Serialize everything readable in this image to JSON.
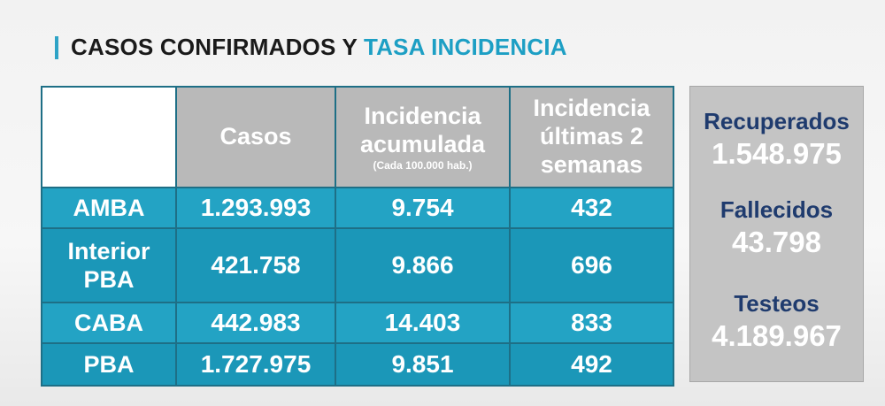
{
  "header": {
    "title_part1": "CASOS CONFIRMADOS Y",
    "title_part2": "TASA INCIDENCIA"
  },
  "table": {
    "columns": [
      {
        "label": "Casos",
        "sublabel": ""
      },
      {
        "label": "Incidencia acumulada",
        "sublabel": "(Cada 100.000 hab.)"
      },
      {
        "label": "Incidencia últimas 2 semanas",
        "sublabel": ""
      }
    ],
    "rows": [
      {
        "region": "AMBA",
        "casos": "1.293.993",
        "incidencia_acumulada": "9.754",
        "incidencia_2_semanas": "432"
      },
      {
        "region": "Interior PBA",
        "casos": "421.758",
        "incidencia_acumulada": "9.866",
        "incidencia_2_semanas": "696"
      },
      {
        "region": "CABA",
        "casos": "442.983",
        "incidencia_acumulada": "14.403",
        "incidencia_2_semanas": "833"
      },
      {
        "region": "PBA",
        "casos": "1.727.975",
        "incidencia_acumulada": "9.851",
        "incidencia_2_semanas": "492"
      }
    ]
  },
  "summary": {
    "recuperados_label": "Recuperados",
    "recuperados_value": "1.548.975",
    "fallecidos_label": "Fallecidos",
    "fallecidos_value": "43.798",
    "testeos_label": "Testeos",
    "testeos_value": "4.189.967"
  },
  "colors": {
    "accent": "#1d9fc4",
    "cell_bg": "#23a3c4",
    "header_bg": "#b9b9b9",
    "label_navy": "#1f3b6e"
  }
}
